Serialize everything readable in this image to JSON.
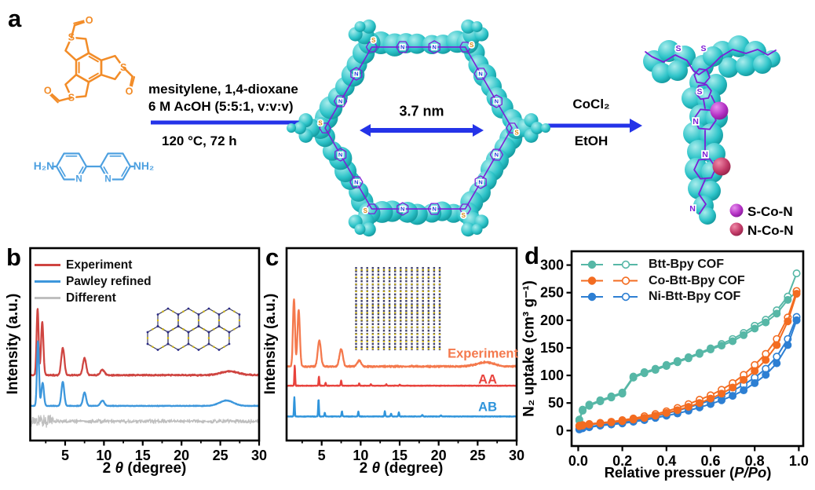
{
  "panel_a": {
    "label": "a",
    "aldehyde_color": "#f28c28",
    "amine_color": "#4da0e0",
    "arrow_color": "#2433e8",
    "conditions_above": [
      "mesitylene, 1,4-dioxane",
      "6 M AcOH (5:5:1, v:v:v)"
    ],
    "conditions_below": "120 °C, 72 h",
    "pore_size_label": "3.7 nm",
    "metalation_above": "CoCl₂",
    "metalation_below": "EtOH",
    "amine_left_label": "H₂N",
    "amine_right_label": "NH₂",
    "sulfur_label": "S",
    "nitrogen_label": "N",
    "oxygen_label": "O",
    "sphere_legend": [
      {
        "label": "S-Co-N",
        "color": "#b431c4"
      },
      {
        "label": "N-Co-N",
        "color": "#c23a67"
      }
    ],
    "molecule_colors": {
      "sphere_fill": "#2ec4c9",
      "sphere_edge": "#0b8d93",
      "stick": "#7d1ed6"
    }
  },
  "panel_b": {
    "label": "b",
    "legend": [
      {
        "label": "Experiment",
        "color": "#cf4541"
      },
      {
        "label": "Pawley refined",
        "color": "#3d97dc"
      },
      {
        "label": "Different",
        "color": "#bfbfbf"
      }
    ],
    "ylabel": "Intensity (a.u.)",
    "xlabel_parts": [
      "2 ",
      "θ",
      " (degree)"
    ]
  },
  "panel_c": {
    "label": "c",
    "curve_labels": [
      {
        "label": "Experiment",
        "color": "#f4794d"
      },
      {
        "label": "AA",
        "color": "#e8423c"
      },
      {
        "label": "AB",
        "color": "#2f94db"
      }
    ],
    "ylabel": "Intensity (a.u.)",
    "xlabel_parts": [
      "2 ",
      "θ",
      " (degree)"
    ]
  },
  "panel_d": {
    "label": "d",
    "legend": [
      {
        "label": "Btt-Bpy COF",
        "color": "#56b7a6"
      },
      {
        "label": "Co-Btt-Bpy COF",
        "color": "#f36c21"
      },
      {
        "label": "Ni-Btt-Bpy COF",
        "color": "#2d7fd3"
      }
    ],
    "ylabel": "N₂ uptake (cm³ g⁻¹)",
    "xlabel_parts": [
      "Relative pressuer (",
      "P/Po",
      ")"
    ]
  },
  "chart_data": [
    {
      "type": "line",
      "panel": "b",
      "xlabel": "2 theta (degree)",
      "ylabel": "Intensity (a.u.)",
      "xlim": [
        0.5,
        30
      ],
      "xticks": [
        5,
        10,
        15,
        20,
        25,
        30
      ],
      "series": [
        {
          "name": "Experiment",
          "color": "#cf4541",
          "baseline": 0.34,
          "noise": 0.004,
          "peaks": [
            [
              1.45,
              0.345,
              0.13
            ],
            [
              2.05,
              0.275,
              0.15
            ],
            [
              4.7,
              0.14,
              0.2
            ],
            [
              7.5,
              0.088,
              0.22
            ],
            [
              9.8,
              0.028,
              0.26
            ],
            [
              26.2,
              0.02,
              1.1
            ]
          ]
        },
        {
          "name": "Pawley refined",
          "color": "#3d97dc",
          "baseline": 0.18,
          "noise": 0.002,
          "peaks": [
            [
              1.5,
              0.335,
              0.13
            ],
            [
              2.1,
              0.12,
              0.16
            ],
            [
              4.7,
              0.125,
              0.18
            ],
            [
              7.5,
              0.07,
              0.2
            ],
            [
              9.8,
              0.028,
              0.24
            ],
            [
              25.8,
              0.028,
              0.9
            ]
          ]
        },
        {
          "name": "Different",
          "color": "#bfbfbf",
          "baseline": 0.1,
          "noise": 0.012,
          "noise_burst_below_x": 3.5,
          "peaks": []
        }
      ]
    },
    {
      "type": "line",
      "panel": "c",
      "xlabel": "2 theta (degree)",
      "ylabel": "Intensity (a.u.)",
      "xlim": [
        0.5,
        30
      ],
      "xticks": [
        5,
        10,
        15,
        20,
        25,
        30
      ],
      "series": [
        {
          "name": "Experiment",
          "color": "#f4794d",
          "baseline": 0.385,
          "noise": 0.005,
          "peaks": [
            [
              1.45,
              0.35,
              0.13
            ],
            [
              2.05,
              0.295,
              0.15
            ],
            [
              4.7,
              0.135,
              0.2
            ],
            [
              7.5,
              0.09,
              0.22
            ],
            [
              9.8,
              0.03,
              0.26
            ],
            [
              26,
              0.022,
              1.1
            ]
          ]
        },
        {
          "name": "AA",
          "color": "#e8423c",
          "baseline": 0.285,
          "noise": 0.0015,
          "peaks": [
            [
              1.55,
              0.106,
              0.05
            ],
            [
              4.65,
              0.048,
              0.05
            ],
            [
              5.5,
              0.015,
              0.05
            ],
            [
              7.5,
              0.026,
              0.055
            ],
            [
              9.8,
              0.012,
              0.055
            ],
            [
              11.3,
              0.008,
              0.055
            ],
            [
              13.3,
              0.008,
              0.055
            ],
            [
              15.0,
              0.006,
              0.055
            ]
          ]
        },
        {
          "name": "AB",
          "color": "#2f94db",
          "baseline": 0.125,
          "noise": 0.0015,
          "peaks": [
            [
              1.5,
              0.1,
              0.05
            ],
            [
              4.6,
              0.092,
              0.05
            ],
            [
              5.4,
              0.02,
              0.05
            ],
            [
              7.6,
              0.027,
              0.055
            ],
            [
              9.7,
              0.025,
              0.055
            ],
            [
              13.1,
              0.027,
              0.055
            ],
            [
              13.9,
              0.015,
              0.055
            ],
            [
              14.9,
              0.021,
              0.055
            ],
            [
              17.9,
              0.008,
              0.07
            ],
            [
              20.3,
              0.006,
              0.07
            ]
          ]
        }
      ]
    },
    {
      "type": "isotherm",
      "panel": "d",
      "xlabel": "Relative pressuer (P/Po)",
      "ylabel": "N2 uptake (cm3 g-1)",
      "xlim": [
        -0.03,
        1.02
      ],
      "ylim": [
        -28,
        325
      ],
      "xticks": [
        0.0,
        0.2,
        0.4,
        0.6,
        0.8,
        1.0
      ],
      "yticks": [
        0,
        50,
        100,
        150,
        200,
        250,
        300
      ],
      "x": [
        0.005,
        0.02,
        0.05,
        0.1,
        0.15,
        0.2,
        0.25,
        0.3,
        0.35,
        0.4,
        0.45,
        0.5,
        0.55,
        0.6,
        0.65,
        0.7,
        0.75,
        0.8,
        0.85,
        0.9,
        0.95,
        0.99
      ],
      "series": [
        {
          "name": "Btt-Bpy COF adsorption",
          "color": "#56b7a6",
          "marker": "filled",
          "y": [
            18,
            36,
            45,
            53,
            60,
            67,
            96,
            104,
            110,
            117,
            124,
            131,
            139,
            147,
            154,
            162,
            173,
            185,
            196,
            212,
            237,
            252
          ]
        },
        {
          "name": "Btt-Bpy COF desorption",
          "color": "#56b7a6",
          "marker": "open",
          "y": [
            20,
            38,
            47,
            55,
            62,
            69,
            98,
            106,
            112,
            119,
            126,
            133,
            141,
            149,
            157,
            166,
            177,
            190,
            201,
            218,
            243,
            285
          ]
        },
        {
          "name": "Co-Btt-Bpy COF adsorption",
          "color": "#f36c21",
          "marker": "filled",
          "y": [
            8,
            9,
            11,
            13,
            15,
            17,
            20,
            23,
            27,
            32,
            37,
            43,
            50,
            58,
            67,
            78,
            92,
            108,
            128,
            155,
            198,
            248
          ]
        },
        {
          "name": "Co-Btt-Bpy COF desorption",
          "color": "#f36c21",
          "marker": "open",
          "y": [
            9,
            10,
            12,
            14,
            16,
            19,
            22,
            26,
            30,
            35,
            41,
            48,
            56,
            64,
            74,
            86,
            101,
            119,
            139,
            166,
            205,
            253
          ]
        },
        {
          "name": "Ni-Btt-Bpy COF adsorption",
          "color": "#2d7fd3",
          "marker": "filled",
          "y": [
            2,
            4,
            6,
            9,
            11,
            13,
            16,
            19,
            23,
            27,
            31,
            36,
            42,
            48,
            55,
            63,
            73,
            86,
            101,
            122,
            155,
            200
          ]
        },
        {
          "name": "Ni-Btt-Bpy COF desorption",
          "color": "#2d7fd3",
          "marker": "open",
          "y": [
            3,
            5,
            7,
            10,
            12,
            15,
            18,
            22,
            26,
            31,
            36,
            42,
            48,
            55,
            63,
            72,
            83,
            96,
            112,
            134,
            166,
            206
          ]
        }
      ]
    }
  ]
}
